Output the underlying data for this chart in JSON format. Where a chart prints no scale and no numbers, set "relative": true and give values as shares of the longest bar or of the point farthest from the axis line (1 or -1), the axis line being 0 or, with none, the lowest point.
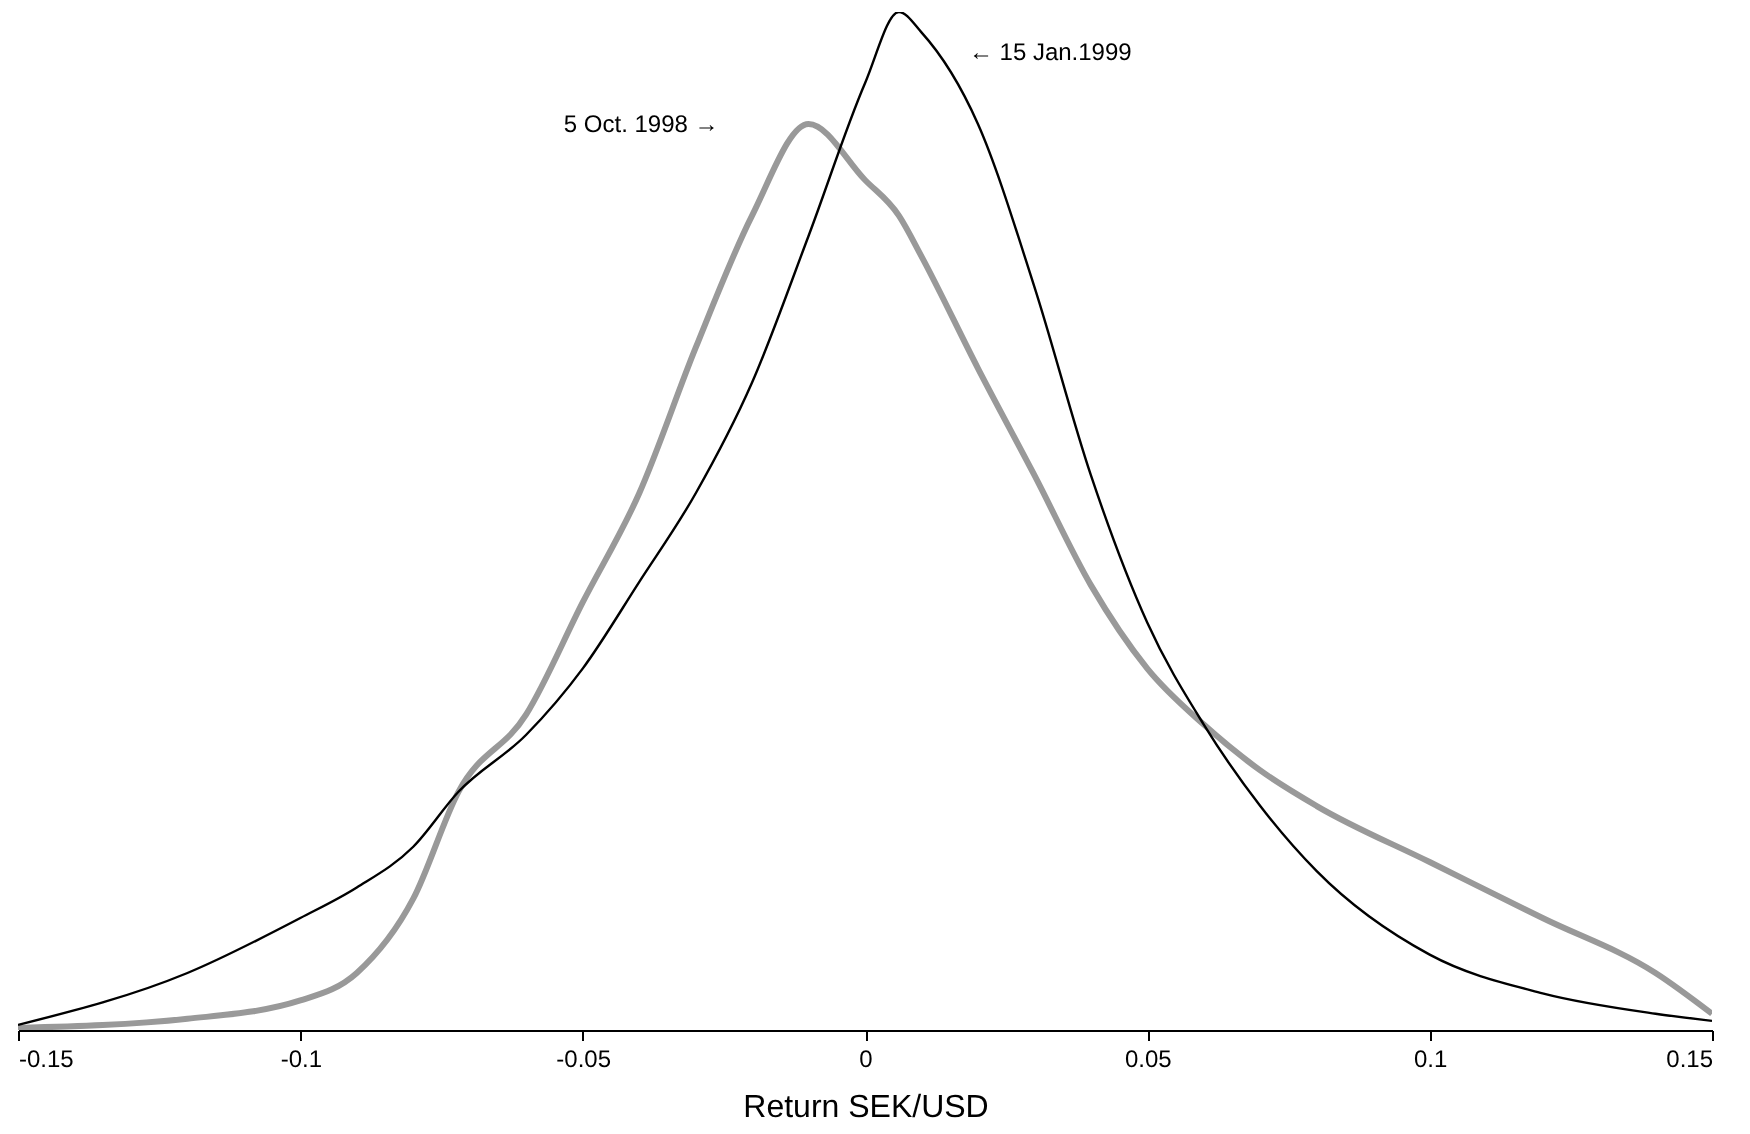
{
  "chart_data": {
    "type": "line",
    "relative": true,
    "xlabel": "Return SEK/USD",
    "xlim": [
      -0.15,
      0.15
    ],
    "xticks": [
      -0.15,
      -0.1,
      -0.05,
      0,
      0.05,
      0.1,
      0.15
    ],
    "grid": false,
    "legend": false,
    "marker": "none",
    "line_style": "solid",
    "x": [
      -0.15,
      -0.12,
      -0.1,
      -0.09,
      -0.08,
      -0.072,
      -0.06,
      -0.05,
      -0.04,
      -0.03,
      -0.02,
      -0.01,
      0,
      0.006,
      0.01,
      0.02,
      0.03,
      0.04,
      0.05,
      0.06,
      0.07,
      0.08,
      0.1,
      0.12,
      0.14,
      0.15
    ],
    "series": [
      {
        "name": "5 Oct. 1998 →",
        "color": "#999999",
        "values": [
          0.002,
          0.011,
          0.029,
          0.056,
          0.129,
          0.234,
          0.31,
          0.42,
          0.527,
          0.67,
          0.8,
          0.89,
          0.835,
          0.8,
          0.76,
          0.65,
          0.545,
          0.437,
          0.355,
          0.3,
          0.255,
          0.22,
          0.165,
          0.11,
          0.056,
          0.016
        ]
      },
      {
        "name": "← 15 Jan.1999",
        "color": "#000000",
        "values": [
          0.005,
          0.056,
          0.11,
          0.14,
          0.18,
          0.234,
          0.29,
          0.355,
          0.44,
          0.527,
          0.636,
          0.78,
          0.93,
          1,
          0.98,
          0.89,
          0.73,
          0.545,
          0.4,
          0.3,
          0.22,
          0.156,
          0.074,
          0.036,
          0.016,
          0.009
        ]
      }
    ]
  }
}
